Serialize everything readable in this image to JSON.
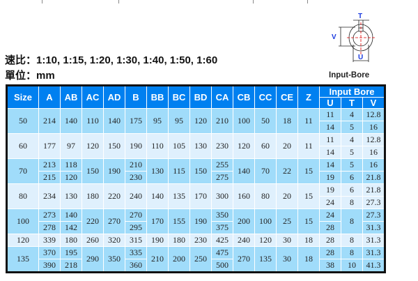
{
  "ratio": "速比：1:10, 1:15, 1:20, 1:30, 1:40, 1:50, 1:60",
  "unit": "單位：mm",
  "diagram": {
    "label": "Input-Bore",
    "dim_t": "T",
    "dim_v": "V",
    "dim_u": "U"
  },
  "colors": {
    "header": "#0080f0",
    "row_odd": "#a0dcfa",
    "row_even": "#dff0fd",
    "dim_text": "#1a3adf",
    "centerline": "#e00000"
  },
  "table": {
    "columns": [
      "Size",
      "A",
      "AB",
      "AC",
      "AD",
      "B",
      "BB",
      "BC",
      "BD",
      "CA",
      "CB",
      "CC",
      "CE",
      "Z"
    ],
    "bore_header": "Input Bore",
    "bore_columns": [
      "U",
      "T",
      "V"
    ],
    "rows": [
      {
        "Size": "50",
        "A": "214",
        "AB": "140",
        "AC": "110",
        "AD": "140",
        "B": "175",
        "BB": "95",
        "BC": "95",
        "BD": "120",
        "CA": "210",
        "CB": "100",
        "CC": "50",
        "CE": "18",
        "Z": "11",
        "U": [
          "11",
          "14"
        ],
        "T": [
          "4",
          "5"
        ],
        "V": [
          "12.8",
          "16"
        ]
      },
      {
        "Size": "60",
        "A": "177",
        "AB": "97",
        "AC": "120",
        "AD": "150",
        "B": "190",
        "BB": "110",
        "BC": "105",
        "BD": "130",
        "CA": "230",
        "CB": "120",
        "CC": "60",
        "CE": "20",
        "Z": "11",
        "U": [
          "11",
          "14"
        ],
        "T": [
          "4",
          "5"
        ],
        "V": [
          "12.8",
          "16"
        ]
      },
      {
        "Size": "70",
        "A": [
          "213",
          "215"
        ],
        "AB": [
          "118",
          "120"
        ],
        "AC": "150",
        "AD": "190",
        "B": [
          "210",
          "230"
        ],
        "BB": "130",
        "BC": "115",
        "BD": "150",
        "CA": [
          "255",
          "275"
        ],
        "CB": "140",
        "CC": "70",
        "CE": "22",
        "Z": "15",
        "U": [
          "14",
          "19"
        ],
        "T": [
          "5",
          "6"
        ],
        "V": [
          "16",
          "21.8"
        ]
      },
      {
        "Size": "80",
        "A": "234",
        "AB": "130",
        "AC": "180",
        "AD": "220",
        "B": "240",
        "BB": "140",
        "BC": "135",
        "BD": "170",
        "CA": "300",
        "CB": "160",
        "CC": "80",
        "CE": "20",
        "Z": "15",
        "U": [
          "19",
          "24"
        ],
        "T": [
          "6",
          "8"
        ],
        "V": [
          "21.8",
          "27.3"
        ]
      },
      {
        "Size": "100",
        "A": [
          "273",
          "278"
        ],
        "AB": [
          "140",
          "142"
        ],
        "AC": "220",
        "AD": "270",
        "B": [
          "270",
          "295"
        ],
        "BB": "170",
        "BC": "155",
        "BD": "190",
        "CA": [
          "350",
          "375"
        ],
        "CB": "200",
        "CC": "100",
        "CE": "25",
        "Z": "15",
        "U": [
          "24",
          "28"
        ],
        "T": "8",
        "V": [
          "27.3",
          "31.3"
        ]
      },
      {
        "Size": "120",
        "A": "339",
        "AB": "180",
        "AC": "260",
        "AD": "320",
        "B": "315",
        "BB": "190",
        "BC": "180",
        "BD": "230",
        "CA": "425",
        "CB": "240",
        "CC": "120",
        "CE": "30",
        "Z": "18",
        "U": "28",
        "T": "8",
        "V": "31.3",
        "single": true
      },
      {
        "Size": "135",
        "A": [
          "370",
          "390"
        ],
        "AB": [
          "195",
          "218"
        ],
        "AC": "290",
        "AD": "350",
        "B": [
          "335",
          "360"
        ],
        "BB": "210",
        "BC": "200",
        "BD": "250",
        "CA": [
          "475",
          "500"
        ],
        "CB": "270",
        "CC": "135",
        "CE": "30",
        "Z": "18",
        "U": [
          "28",
          "38"
        ],
        "T": [
          "8",
          "10"
        ],
        "V": [
          "31.3",
          "41.3"
        ]
      }
    ]
  }
}
